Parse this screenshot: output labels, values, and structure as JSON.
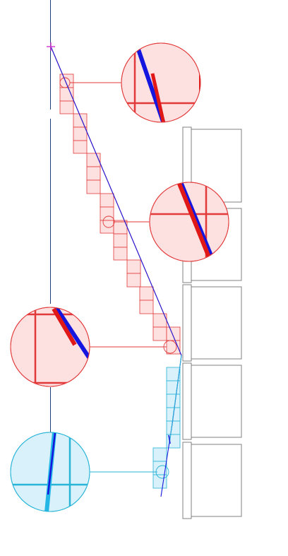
{
  "colors": {
    "background": "#ffffff",
    "axis": "#1f3f7a",
    "marker": "#cc33cc",
    "redStroke": "#e23a3a",
    "redFill": "#fde0e0",
    "redThick": "#e01818",
    "blueLine": "#1a1adf",
    "blueThick": "#1515e0",
    "cyanStroke": "#27b4d6",
    "cyanFill": "#d8f1fb",
    "cyanThick": "#24b7e6",
    "panel": "#808080"
  },
  "icons": {
    "marker": "crosshair-marker-icon",
    "zoom": "magnifier-callout-icon"
  },
  "zoom_callouts": [
    {
      "name": "zoom-callout-1",
      "theme": "red"
    },
    {
      "name": "zoom-callout-2",
      "theme": "red"
    },
    {
      "name": "zoom-callout-3",
      "theme": "red"
    },
    {
      "name": "zoom-callout-4",
      "theme": "cyan"
    }
  ],
  "panels_count": 5
}
